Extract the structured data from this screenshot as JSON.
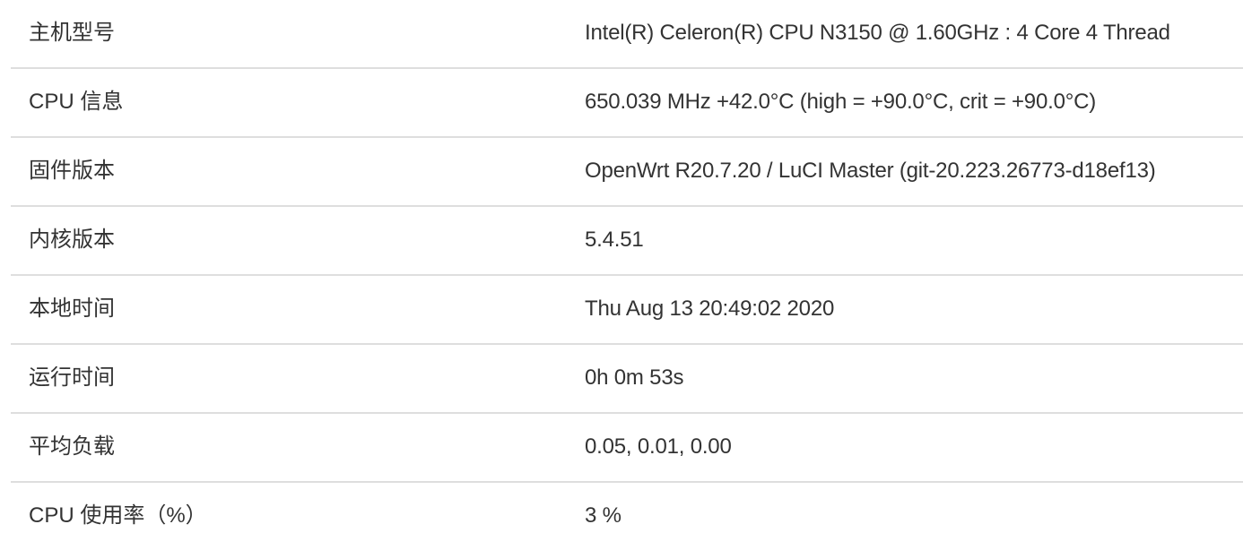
{
  "status_table": {
    "rows": [
      {
        "label": "主机型号",
        "value": "Intel(R) Celeron(R) CPU N3150 @ 1.60GHz : 4 Core 4 Thread"
      },
      {
        "label": "CPU 信息",
        "value": "650.039 MHz +42.0°C (high = +90.0°C, crit = +90.0°C)"
      },
      {
        "label": "固件版本",
        "value": "OpenWrt R20.7.20 / LuCI Master (git-20.223.26773-d18ef13)"
      },
      {
        "label": "内核版本",
        "value": "5.4.51"
      },
      {
        "label": "本地时间",
        "value": "Thu Aug 13 20:49:02 2020"
      },
      {
        "label": "运行时间",
        "value": "0h 0m 53s"
      },
      {
        "label": "平均负载",
        "value": "0.05, 0.01, 0.00"
      },
      {
        "label": "CPU 使用率（%）",
        "value": "3 %"
      }
    ]
  }
}
